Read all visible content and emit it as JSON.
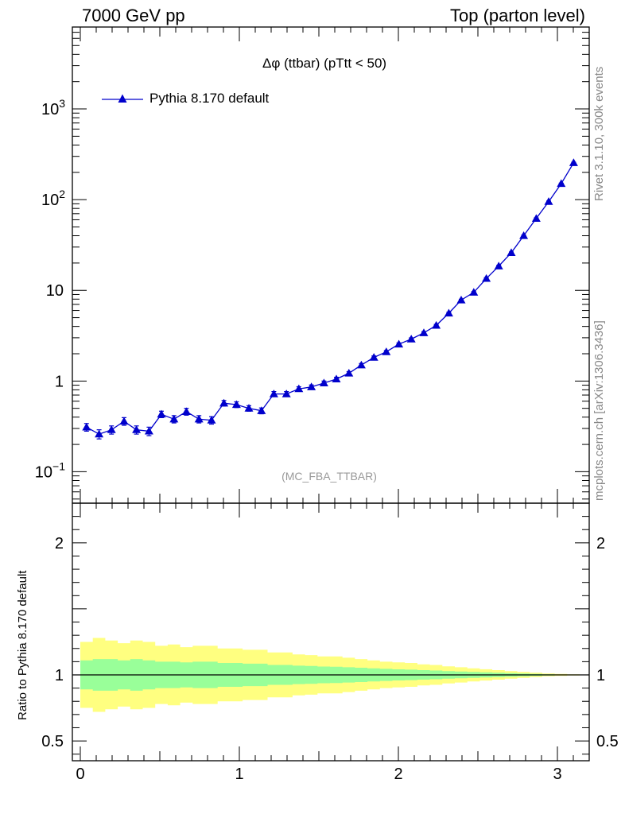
{
  "header": {
    "left": "7000 GeV pp",
    "right": "Top (parton level)"
  },
  "side_text": {
    "rivet": "Rivet 3.1.10,  300k events",
    "mcplots": "mcplots.cern.ch [arXiv:1306.3436]"
  },
  "chart_data": [
    {
      "type": "line",
      "title": "Δφ (ttbar) (pTtt < 50)",
      "watermark": "(MC_FBA_TTBAR)",
      "yscale": "log",
      "xlim": [
        -0.05,
        3.2
      ],
      "ylim": [
        0.045,
        8000
      ],
      "ytick_labels": [
        {
          "value": 0.1,
          "base": "10",
          "exp": "−1"
        },
        {
          "value": 1,
          "base": "1",
          "exp": ""
        },
        {
          "value": 10,
          "base": "10",
          "exp": ""
        },
        {
          "value": 100,
          "base": "10",
          "exp": "2"
        },
        {
          "value": 1000,
          "base": "10",
          "exp": "3"
        }
      ],
      "legend": "top-left",
      "color": "#0000cc",
      "series": [
        {
          "name": "Pythia 8.170 default",
          "x": [
            0.039,
            0.118,
            0.196,
            0.275,
            0.353,
            0.432,
            0.51,
            0.589,
            0.667,
            0.746,
            0.825,
            0.903,
            0.982,
            1.06,
            1.139,
            1.217,
            1.296,
            1.374,
            1.453,
            1.532,
            1.61,
            1.689,
            1.767,
            1.846,
            1.924,
            2.003,
            2.081,
            2.16,
            2.238,
            2.317,
            2.395,
            2.474,
            2.553,
            2.631,
            2.71,
            2.788,
            2.867,
            2.945,
            3.024,
            3.102
          ],
          "y": [
            0.31,
            0.26,
            0.29,
            0.36,
            0.29,
            0.28,
            0.43,
            0.38,
            0.46,
            0.38,
            0.37,
            0.57,
            0.55,
            0.5,
            0.47,
            0.72,
            0.72,
            0.82,
            0.86,
            0.95,
            1.05,
            1.22,
            1.5,
            1.82,
            2.1,
            2.55,
            2.9,
            3.4,
            4.1,
            5.6,
            7.8,
            9.5,
            13.5,
            18.5,
            26,
            40,
            62,
            95,
            150,
            255
          ],
          "yerr": [
            0.03,
            0.03,
            0.03,
            0.035,
            0.03,
            0.03,
            0.035,
            0.035,
            0.04,
            0.035,
            0.035,
            0.04,
            0.04,
            0.035,
            0.035,
            0.045,
            0.045,
            0.045,
            0.045,
            0.05,
            0.05,
            0.05,
            0.06,
            0.07,
            0.07,
            0.08,
            0.09,
            0.1,
            0.11,
            0.14,
            0.18,
            0.2,
            0.3,
            0.4,
            0.5,
            0.7,
            1.0,
            1.5,
            2.0,
            3.0
          ]
        }
      ]
    },
    {
      "type": "area",
      "ylabel": "Ratio to Pythia 8.170 default",
      "xlim": [
        -0.05,
        3.2
      ],
      "ylim": [
        0.35,
        2.3
      ],
      "xtick_labels": [
        "0",
        "1",
        "2",
        "3"
      ],
      "ytick_labels": [
        "0.5",
        "1",
        "2"
      ],
      "bin_edges": [
        0,
        0.0785,
        0.157,
        0.2355,
        0.314,
        0.3925,
        0.471,
        0.5495,
        0.628,
        0.7065,
        0.785,
        0.8635,
        0.942,
        1.0205,
        1.099,
        1.1775,
        1.256,
        1.3345,
        1.413,
        1.4915,
        1.57,
        1.6485,
        1.727,
        1.8055,
        1.884,
        1.9625,
        2.041,
        2.1195,
        2.198,
        2.2765,
        2.355,
        2.4335,
        2.512,
        2.5905,
        2.669,
        2.7475,
        2.826,
        2.9045,
        2.983,
        3.0615,
        3.14
      ],
      "band_outer": [
        0.25,
        0.28,
        0.26,
        0.24,
        0.26,
        0.25,
        0.22,
        0.23,
        0.21,
        0.22,
        0.22,
        0.2,
        0.2,
        0.19,
        0.19,
        0.17,
        0.17,
        0.155,
        0.15,
        0.14,
        0.14,
        0.13,
        0.12,
        0.11,
        0.1,
        0.095,
        0.09,
        0.08,
        0.075,
        0.065,
        0.058,
        0.05,
        0.043,
        0.036,
        0.029,
        0.022,
        0.016,
        0.011,
        0.007,
        0.004
      ],
      "band_inner": [
        0.11,
        0.12,
        0.12,
        0.11,
        0.12,
        0.11,
        0.1,
        0.1,
        0.095,
        0.1,
        0.1,
        0.09,
        0.09,
        0.085,
        0.085,
        0.075,
        0.075,
        0.07,
        0.068,
        0.063,
        0.062,
        0.058,
        0.054,
        0.05,
        0.046,
        0.042,
        0.04,
        0.036,
        0.033,
        0.029,
        0.026,
        0.022,
        0.019,
        0.016,
        0.013,
        0.01,
        0.007,
        0.005,
        0.003,
        0.002
      ],
      "colors": {
        "outer": "#ffff80",
        "inner": "#99ff99",
        "reference": "#000000"
      }
    }
  ]
}
